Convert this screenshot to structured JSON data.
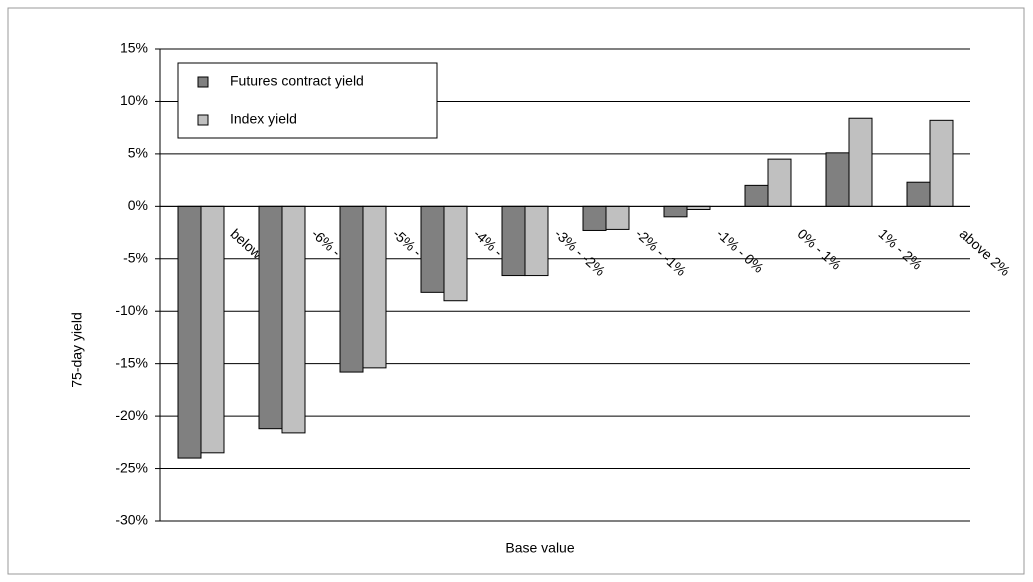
{
  "chart_data": {
    "type": "bar",
    "x_label": "Base value",
    "y_label": "75-day yield",
    "categories": [
      "below 6%",
      "-6% - -5%",
      "-5% - -4%",
      "-4% - -3%",
      "-3% - -2%",
      "-2% - -1%",
      "-1% - 0%",
      "0% - 1%",
      "1% - 2%",
      "above 2%"
    ],
    "series": [
      {
        "name": "Futures contract yield",
        "color": "#808080",
        "values": [
          -24,
          -21.2,
          -15.8,
          -8.2,
          -6.6,
          -2.3,
          -1.0,
          2.0,
          5.1,
          2.3
        ]
      },
      {
        "name": "Index yield",
        "color": "#c0c0c0",
        "values": [
          -23.5,
          -21.6,
          -15.4,
          -9.0,
          -6.6,
          -2.2,
          -0.3,
          4.5,
          8.4,
          8.2
        ]
      }
    ],
    "ylim": [
      -30,
      15
    ],
    "yticks": [
      {
        "value": -30,
        "label": "-30%"
      },
      {
        "value": -25,
        "label": "-25%"
      },
      {
        "value": -20,
        "label": "-20%"
      },
      {
        "value": -15,
        "label": "-15%"
      },
      {
        "value": -10,
        "label": "-10%"
      },
      {
        "value": -5,
        "label": "-5%"
      },
      {
        "value": 0,
        "label": "0%"
      },
      {
        "value": 5,
        "label": "5%"
      },
      {
        "value": 10,
        "label": "10%"
      },
      {
        "value": 15,
        "label": "15%"
      }
    ],
    "grid": true,
    "legend": "top-left"
  }
}
